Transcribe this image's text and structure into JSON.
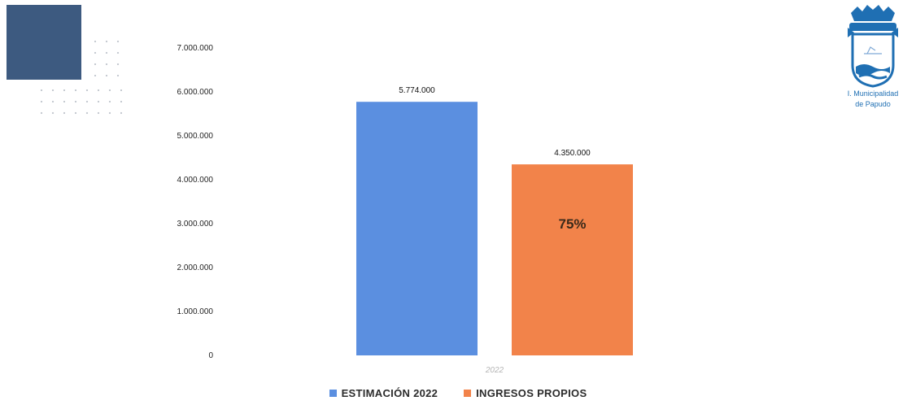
{
  "chart_data": {
    "type": "bar",
    "categories": [
      "2022"
    ],
    "series": [
      {
        "name": "ESTIMACIÓN 2022",
        "values": [
          5774000
        ],
        "color": "#5b8fe0",
        "value_label": "5.774.000"
      },
      {
        "name": "INGRESOS PROPIOS",
        "values": [
          4350000
        ],
        "color": "#f2834a",
        "value_label": "4.350.000",
        "inner_label": "75%"
      }
    ],
    "yticks": [
      "0",
      "1.000.000",
      "2.000.000",
      "3.000.000",
      "4.000.000",
      "5.000.000",
      "6.000.000",
      "7.000.000"
    ],
    "ylim": [
      0,
      7000000
    ],
    "grid": false,
    "legend": "bottom"
  },
  "logo": {
    "name": "municipal-crest-icon",
    "line1": "I. Municipalidad",
    "line2": "de Papudo",
    "color": "#1f6fb3"
  },
  "decorations": {
    "square_color": "#3d5a80"
  }
}
